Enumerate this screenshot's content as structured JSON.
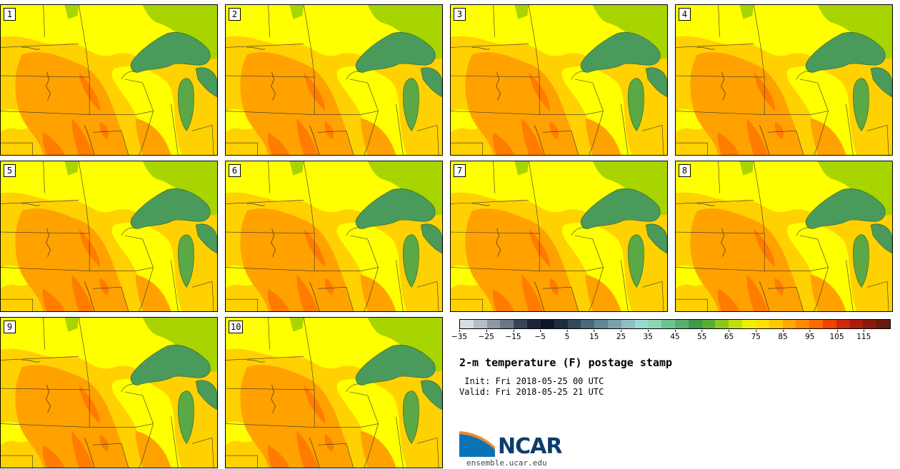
{
  "panels": [
    {
      "label": "1"
    },
    {
      "label": "2"
    },
    {
      "label": "3"
    },
    {
      "label": "4"
    },
    {
      "label": "5"
    },
    {
      "label": "6"
    },
    {
      "label": "7"
    },
    {
      "label": "8"
    },
    {
      "label": "9"
    },
    {
      "label": "10"
    }
  ],
  "colorbar": {
    "colors": [
      "#d7dde3",
      "#b4bcc6",
      "#8e98a6",
      "#6b7687",
      "#3a4456",
      "#1d2639",
      "#0e1729",
      "#1b2e3f",
      "#2e4a5c",
      "#476b7b",
      "#5f8794",
      "#78a3ac",
      "#8fbfc2",
      "#9ad9d2",
      "#8ed4b5",
      "#6fc390",
      "#58b06e",
      "#3f9a4b",
      "#5aac33",
      "#8bc71f",
      "#c2de10",
      "#eef000",
      "#ffe000",
      "#ffc800",
      "#ffa800",
      "#ff8a00",
      "#ff6a00",
      "#ee4400",
      "#cc2a0a",
      "#a81d0c",
      "#8a1a0c",
      "#6a1c10"
    ],
    "ticks": [
      "−35",
      "−25",
      "−15",
      "−5",
      "5",
      "15",
      "25",
      "35",
      "45",
      "55",
      "65",
      "75",
      "85",
      "95",
      "105",
      "115"
    ]
  },
  "title": "2-m temperature (F) postage stamp",
  "init": " Init: Fri 2018-05-25 00 UTC",
  "valid": "Valid: Fri 2018-05-25 21 UTC",
  "logo": {
    "text": "NCAR",
    "colors": {
      "blue": "#0a73b8",
      "orange": "#f08a2c"
    }
  },
  "site": "ensemble.ucar.edu",
  "map_colors": {
    "base": "#ffd100",
    "warm": "#ffa200",
    "hot": "#ff7c00",
    "cool": "#ffff00",
    "green": "#a8d400",
    "lake": "#4a9a5c",
    "lake_dark": "#3c8a50"
  }
}
